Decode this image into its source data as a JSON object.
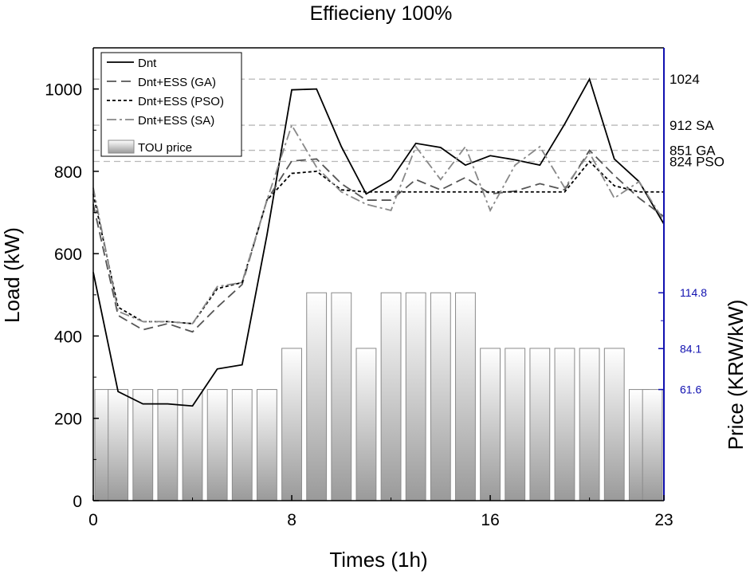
{
  "chart_data": {
    "type": "line",
    "title": "Effiecieny 100%",
    "xlabel": "Times (1h)",
    "ylabel": "Load (kW)",
    "y2label": "Price (KRW/kW)",
    "x": [
      0,
      1,
      2,
      3,
      4,
      5,
      6,
      7,
      8,
      9,
      10,
      11,
      12,
      13,
      14,
      15,
      16,
      17,
      18,
      19,
      20,
      21,
      22,
      23
    ],
    "xlim": [
      0,
      23
    ],
    "xticks": [
      0,
      8,
      16,
      23
    ],
    "ylim": [
      0,
      1100
    ],
    "yticks": [
      0,
      200,
      400,
      600,
      800,
      1000
    ],
    "y2ticks": [
      {
        "value": 61.6,
        "label": "61.6"
      },
      {
        "value": 84.1,
        "label": "84.1"
      },
      {
        "value": 114.8,
        "label": "114.8"
      }
    ],
    "y2_minor_ticks": [
      99.45
    ],
    "y2_axis_color": "#1010b0",
    "legend_position": "top-left",
    "series": [
      {
        "name": "Dnt",
        "style": "solid",
        "color": "#000000",
        "values": [
          555,
          265,
          235,
          235,
          230,
          320,
          330,
          645,
          998,
          1000,
          860,
          745,
          780,
          868,
          858,
          815,
          838,
          828,
          815,
          915,
          1024,
          830,
          775,
          672
        ]
      },
      {
        "name": "Dnt+ESS (GA)",
        "style": "dashed",
        "color": "#555555",
        "values": [
          720,
          450,
          415,
          430,
          410,
          470,
          525,
          730,
          825,
          830,
          770,
          730,
          730,
          780,
          755,
          785,
          745,
          752,
          770,
          755,
          851,
          790,
          735,
          690
        ]
      },
      {
        "name": "Dnt+ESS (PSO)",
        "style": "dotted",
        "color": "#000000",
        "values": [
          745,
          470,
          435,
          435,
          430,
          515,
          530,
          730,
          795,
          800,
          755,
          750,
          750,
          750,
          750,
          750,
          750,
          750,
          750,
          750,
          824,
          765,
          750,
          750
        ]
      },
      {
        "name": "Dnt+ESS (SA)",
        "style": "dashdot",
        "color": "#888888",
        "values": [
          760,
          460,
          435,
          435,
          430,
          520,
          530,
          730,
          912,
          810,
          750,
          720,
          705,
          860,
          780,
          860,
          705,
          815,
          860,
          760,
          845,
          735,
          775,
          680
        ]
      }
    ],
    "price_bars": {
      "name": "TOU price",
      "load_equivalent": [
        270,
        270,
        270,
        270,
        270,
        270,
        270,
        270,
        370,
        505,
        505,
        370,
        505,
        505,
        505,
        505,
        370,
        370,
        370,
        370,
        370,
        370,
        270,
        270
      ]
    },
    "reference_lines": [
      {
        "y": 1024,
        "label": "1024"
      },
      {
        "y": 912,
        "label": "912 SA"
      },
      {
        "y": 851,
        "label": "851 GA"
      },
      {
        "y": 824,
        "label": "824 PSO"
      }
    ],
    "grid": false
  }
}
